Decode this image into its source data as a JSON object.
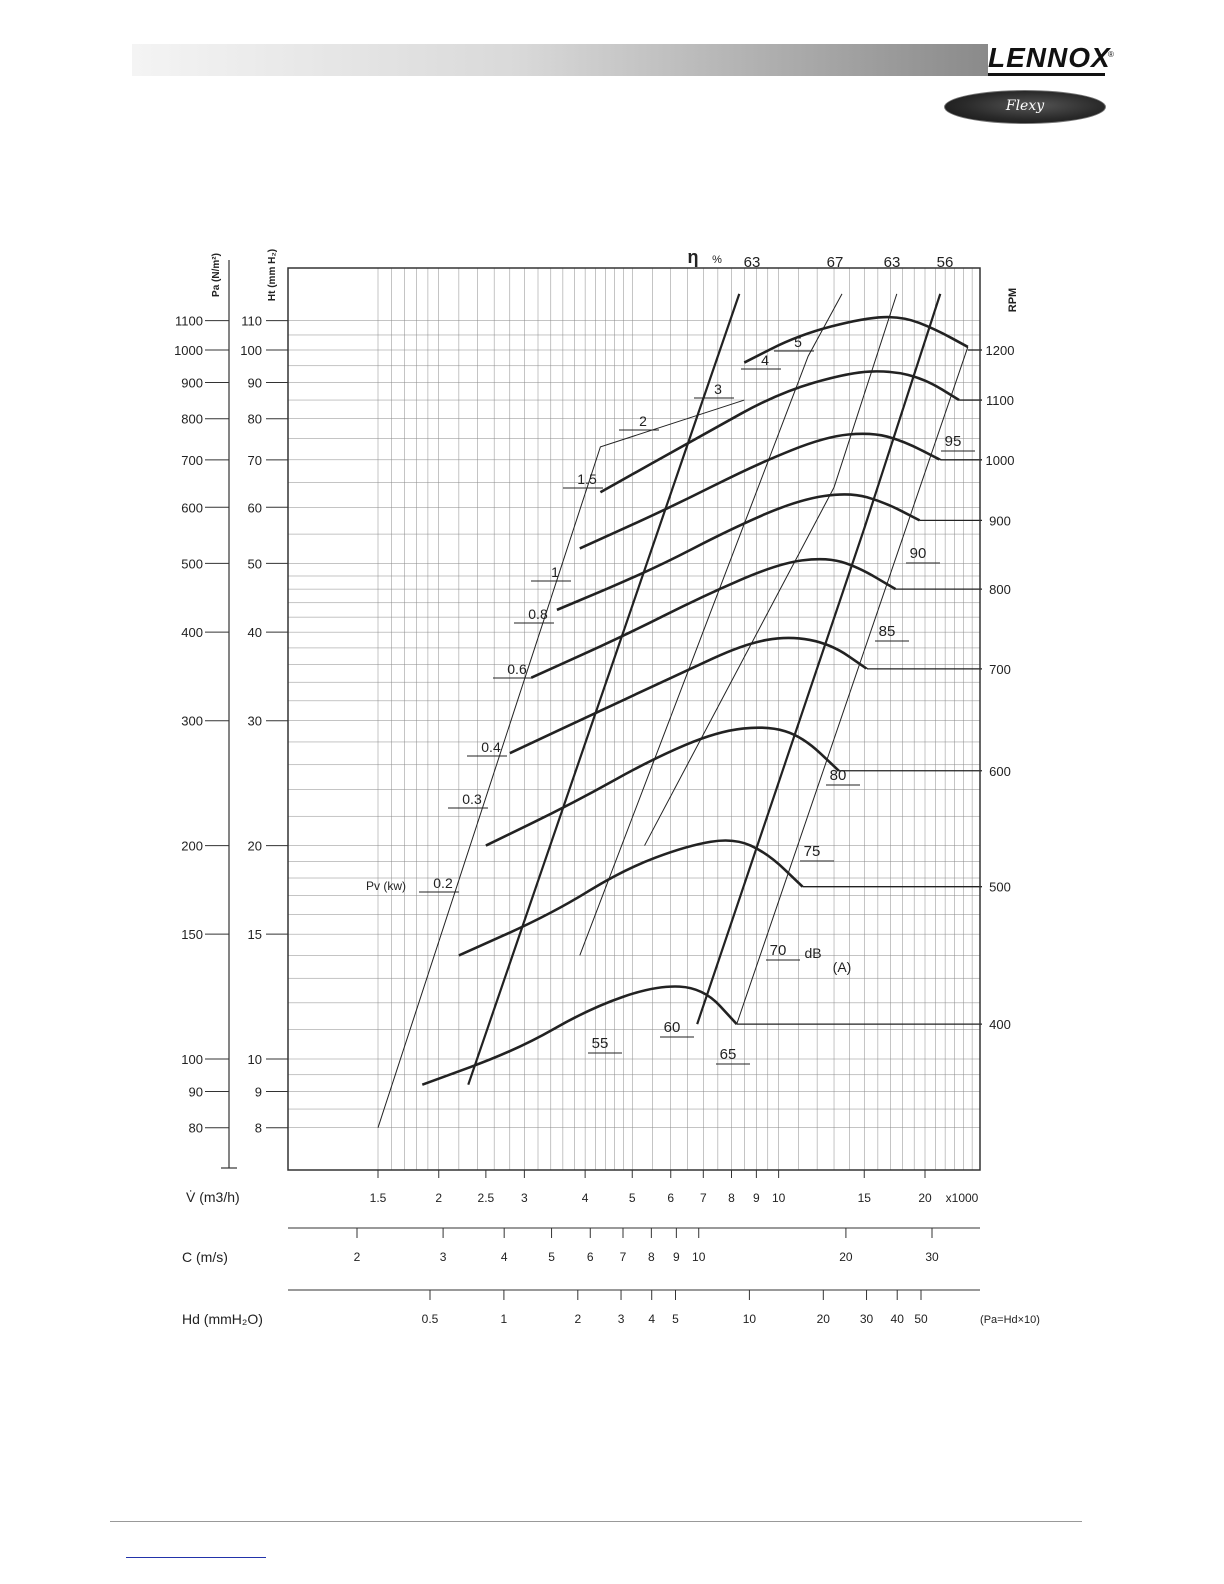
{
  "header": {
    "brand": "LENNOX",
    "registered": "®",
    "product": "Flexy"
  },
  "colors": {
    "curve": "#222222",
    "grid": "#8a8a8a",
    "text": "#222222"
  },
  "chart_data": {
    "type": "line",
    "title": "",
    "ylabel_left": "Pa (N/m²)",
    "ylabel_inner": "Ht (mm H₂)",
    "rpm_label": "RPM",
    "eta_label": "η",
    "eta_unit": "%",
    "pv_label": "Pv (kw)",
    "db_label": "dB",
    "db_unit": "(A)",
    "xlim": [
      1.5,
      26
    ],
    "ylim_pa": [
      80,
      1100
    ],
    "x_axis": {
      "label": "V̇ (m3/h)",
      "ticks": [
        1.5,
        2,
        2.5,
        3,
        4,
        5,
        6,
        7,
        8,
        9,
        10,
        15,
        20
      ],
      "tick_labels": [
        "1.5",
        "2",
        "2.5",
        "3",
        "4",
        "5",
        "6",
        "7",
        "8",
        "9",
        "10",
        "15",
        "20"
      ],
      "multiplier": "x1000"
    },
    "c_axis": {
      "label": "C (m/s)",
      "ticks": [
        2,
        3,
        4,
        5,
        6,
        7,
        8,
        9,
        10,
        20,
        30
      ],
      "tick_labels": [
        "2",
        "3",
        "4",
        "5",
        "6",
        "7",
        "8",
        "9",
        "10",
        "20",
        "30"
      ]
    },
    "hd_axis": {
      "label": "Hd (mmH₂O)",
      "ticks": [
        0.5,
        1,
        2,
        3,
        4,
        5,
        10,
        20,
        30,
        40,
        50
      ],
      "tick_labels": [
        "0.5",
        "1",
        "2",
        "3",
        "4",
        "5",
        "10",
        "20",
        "30",
        "40",
        "50"
      ],
      "note": "(Pa=Hd×10)"
    },
    "pa_axis": {
      "ticks": [
        1100,
        1000,
        900,
        800,
        700,
        600,
        500,
        400,
        300,
        200,
        150,
        100,
        90,
        80
      ],
      "tick_labels": [
        "1100",
        "1000",
        "900",
        "800",
        "700",
        "600",
        "500",
        "400",
        "300",
        "200",
        "150",
        "100",
        "90",
        "80"
      ]
    },
    "ht_axis": {
      "ticks": [
        110,
        100,
        90,
        80,
        70,
        60,
        50,
        40,
        30,
        20,
        15,
        10,
        9,
        8
      ],
      "tick_labels": [
        "110",
        "100",
        "90",
        "80",
        "70",
        "60",
        "50",
        "40",
        "30",
        "20",
        "15",
        "10",
        "9",
        "8"
      ]
    },
    "rpm_curves": [
      {
        "rpm": "1200",
        "label_pa": 1000,
        "points": [
          [
            8.5,
            960
          ],
          [
            11,
            1050
          ],
          [
            15,
            1110
          ],
          [
            18,
            1115
          ],
          [
            21,
            1070
          ],
          [
            24.5,
            1010
          ]
        ]
      },
      {
        "rpm": "1100",
        "label_pa": 850,
        "points": [
          [
            4.3,
            630
          ],
          [
            7,
            760
          ],
          [
            10,
            870
          ],
          [
            14,
            930
          ],
          [
            17,
            935
          ],
          [
            20,
            910
          ],
          [
            23.5,
            850
          ]
        ]
      },
      {
        "rpm": "1000",
        "label_pa": 700,
        "points": [
          [
            3.9,
            525
          ],
          [
            6,
            600
          ],
          [
            9,
            690
          ],
          [
            12.5,
            755
          ],
          [
            15.5,
            765
          ],
          [
            18,
            745
          ],
          [
            21.5,
            700
          ]
        ]
      },
      {
        "rpm": "900",
        "label_pa": 575,
        "points": [
          [
            3.5,
            430
          ],
          [
            5.5,
            490
          ],
          [
            8,
            560
          ],
          [
            11,
            615
          ],
          [
            14,
            630
          ],
          [
            16.5,
            610
          ],
          [
            19.5,
            575
          ]
        ]
      },
      {
        "rpm": "800",
        "label_pa": 460,
        "points": [
          [
            3.1,
            345
          ],
          [
            4.8,
            395
          ],
          [
            7,
            450
          ],
          [
            10,
            500
          ],
          [
            12.5,
            510
          ],
          [
            14.5,
            495
          ],
          [
            17.4,
            460
          ]
        ]
      },
      {
        "rpm": "700",
        "label_pa": 355,
        "points": [
          [
            2.8,
            270
          ],
          [
            4.3,
            310
          ],
          [
            6.3,
            350
          ],
          [
            8.5,
            385
          ],
          [
            10.5,
            395
          ],
          [
            12.8,
            385
          ],
          [
            15.2,
            355
          ]
        ]
      },
      {
        "rpm": "600",
        "label_pa": 255,
        "points": [
          [
            2.5,
            200
          ],
          [
            3.8,
            230
          ],
          [
            5.5,
            265
          ],
          [
            7.5,
            290
          ],
          [
            9.5,
            295
          ],
          [
            11.2,
            285
          ],
          [
            13.3,
            255
          ]
        ]
      },
      {
        "rpm": "500",
        "label_pa": 175,
        "points": [
          [
            2.2,
            140
          ],
          [
            3.4,
            160
          ],
          [
            4.8,
            185
          ],
          [
            6.5,
            200
          ],
          [
            8.1,
            205
          ],
          [
            9.5,
            195
          ],
          [
            11.2,
            175
          ]
        ]
      },
      {
        "rpm": "400",
        "label_pa": 112,
        "points": [
          [
            1.85,
            92
          ],
          [
            2.9,
            103
          ],
          [
            4.1,
            118
          ],
          [
            5.6,
            127
          ],
          [
            7,
            126
          ],
          [
            8.2,
            112
          ]
        ]
      }
    ],
    "eta_labels": [
      "63",
      "67",
      "63",
      "56"
    ],
    "power_labels": [
      "5",
      "4",
      "3",
      "2",
      "1.5",
      "1",
      "0.8",
      "0.6",
      "0.4",
      "0.3",
      "0.2"
    ],
    "db_labels": [
      "95",
      "90",
      "85",
      "80",
      "75",
      "70",
      "65",
      "60",
      "55"
    ]
  }
}
